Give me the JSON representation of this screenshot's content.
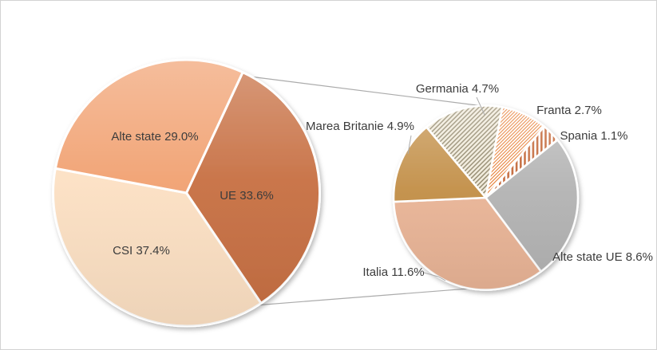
{
  "page": {
    "background": "#FFFFFF",
    "border_color": "#D2D2D2"
  },
  "chart_data": {
    "type": "pie",
    "subtype": "pie-of-pie",
    "title": "",
    "label_format": "{label} {value}%",
    "text_color": "#3C3C3C",
    "connector_color": "#ABABAB",
    "legend": "none",
    "main_pie": {
      "start_angle_deg": 25,
      "slices": [
        {
          "label": "UE",
          "value": 33.6,
          "fill": "#C76F42",
          "pattern": "solid"
        },
        {
          "label": "CSI",
          "value": 37.4,
          "fill": "#FCE0C3",
          "pattern": "solid"
        },
        {
          "label": "Alte state",
          "value": 29.0,
          "fill": "#F1A171",
          "pattern": "solid"
        }
      ]
    },
    "secondary_pie": {
      "parent_slice": "UE",
      "start_angle_deg": 320,
      "slices": [
        {
          "label": "Germania",
          "value": 4.7,
          "fill": "#F2ECDC",
          "pattern": "diagonal-hatch",
          "pattern_color": "#857A5C"
        },
        {
          "label": "Franta",
          "value": 2.7,
          "fill": "#FFFFFF",
          "pattern": "diagonal-hatch-fine",
          "pattern_color": "#E4701E"
        },
        {
          "label": "Spania",
          "value": 1.1,
          "fill": "#FFFFFF",
          "pattern": "vertical-stripes",
          "pattern_color": "#C05F2E"
        },
        {
          "label": "Alte state UE",
          "value": 8.6,
          "fill": "#B3B3B3",
          "pattern": "solid"
        },
        {
          "label": "Italia",
          "value": 11.6,
          "fill": "#E9B496",
          "pattern": "solid"
        },
        {
          "label": "Marea Britanie",
          "value": 4.9,
          "fill": "#C28E46",
          "pattern": "solid"
        }
      ]
    }
  }
}
